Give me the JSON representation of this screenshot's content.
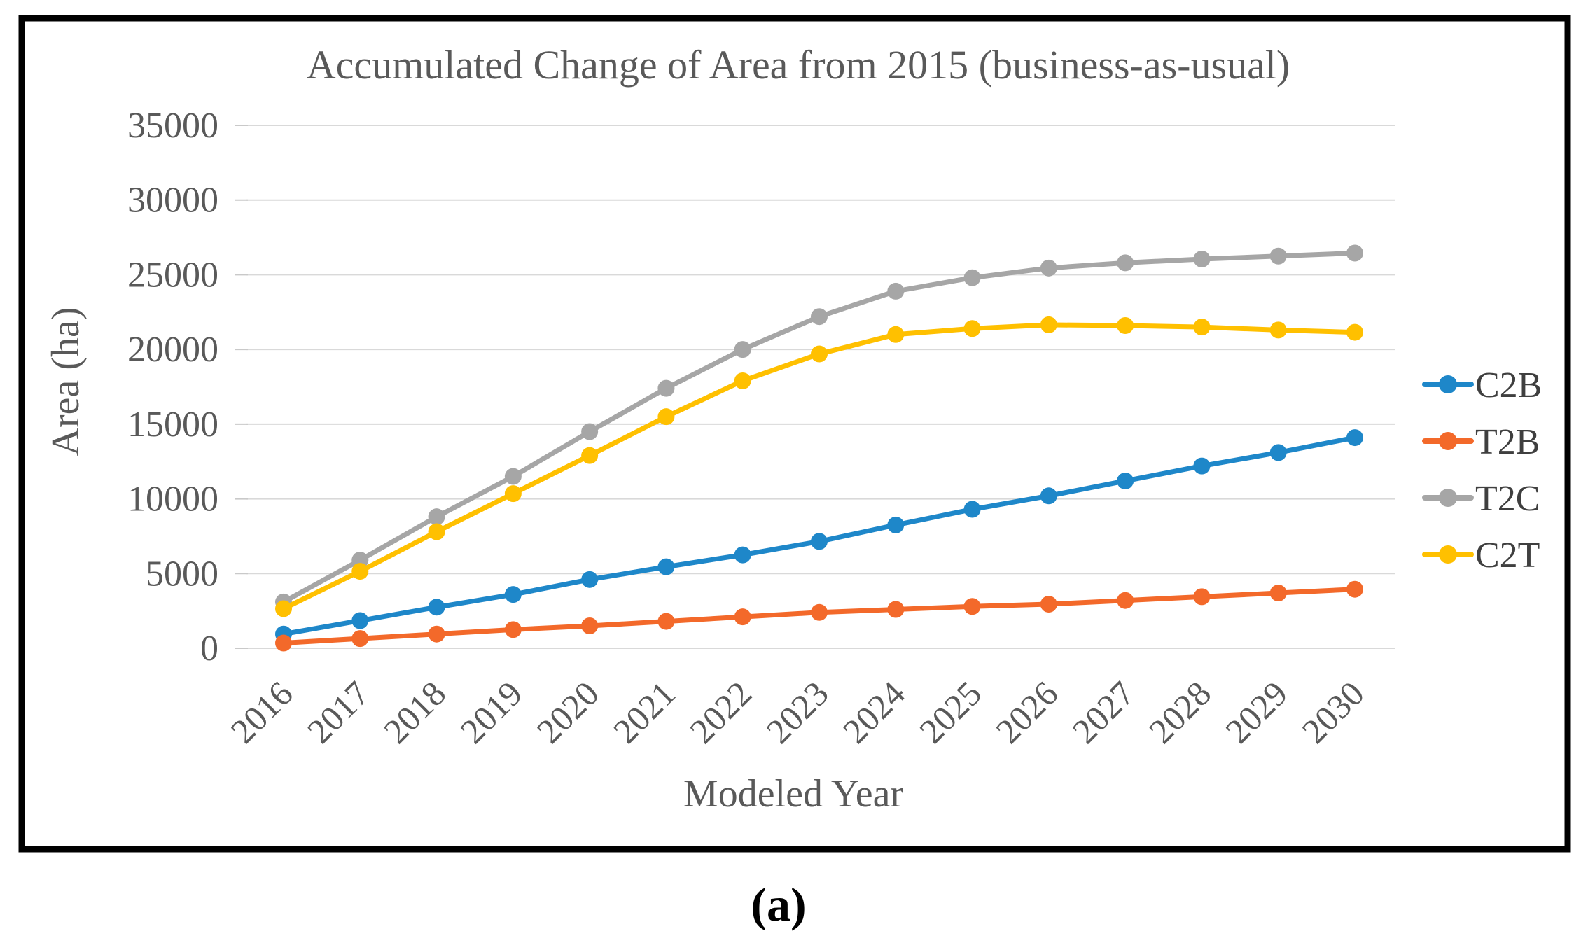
{
  "title": "Accumulated Change of Area from 2015 (business-as-usual)",
  "caption": "(a)",
  "chart_data": {
    "type": "line",
    "title": "Accumulated Change of Area from 2015 (business-as-usual)",
    "xlabel": "Modeled Year",
    "ylabel": "Area (ha)",
    "x": [
      "2016",
      "2017",
      "2018",
      "2019",
      "2020",
      "2021",
      "2022",
      "2023",
      "2024",
      "2025",
      "2026",
      "2027",
      "2028",
      "2029",
      "2030"
    ],
    "series": [
      {
        "name": "C2B",
        "color": "#1e87c9",
        "values": [
          950,
          1850,
          2750,
          3600,
          4600,
          5450,
          6250,
          7150,
          8250,
          9300,
          10200,
          11200,
          12200,
          13100,
          14100
        ]
      },
      {
        "name": "T2B",
        "color": "#f3692a",
        "values": [
          350,
          650,
          950,
          1250,
          1500,
          1800,
          2100,
          2400,
          2600,
          2800,
          2950,
          3200,
          3450,
          3700,
          3950
        ]
      },
      {
        "name": "T2C",
        "color": "#a6a6a6",
        "values": [
          3100,
          5900,
          8800,
          11500,
          14500,
          17400,
          20000,
          22200,
          23900,
          24800,
          25450,
          25800,
          26050,
          26250,
          26450
        ]
      },
      {
        "name": "C2T",
        "color": "#ffc000",
        "values": [
          2650,
          5150,
          7800,
          10350,
          12900,
          15500,
          17900,
          19700,
          21000,
          21400,
          21650,
          21600,
          21500,
          21300,
          21150
        ]
      }
    ],
    "ylim": [
      0,
      35000
    ],
    "ytick_step": 5000,
    "ytick_labels": [
      "0",
      "5000",
      "10000",
      "15000",
      "20000",
      "25000",
      "30000",
      "35000"
    ],
    "grid": true,
    "legend_position": "right",
    "legend_entries": [
      "C2B",
      "T2B",
      "T2C",
      "C2T"
    ]
  },
  "colors": {
    "gridline": "#d9d9d9",
    "tick_mark": "#c9c9c9",
    "axis_text": "#595959",
    "legend_text": "#3f3f3f",
    "frame": "#000000",
    "background": "#ffffff"
  }
}
